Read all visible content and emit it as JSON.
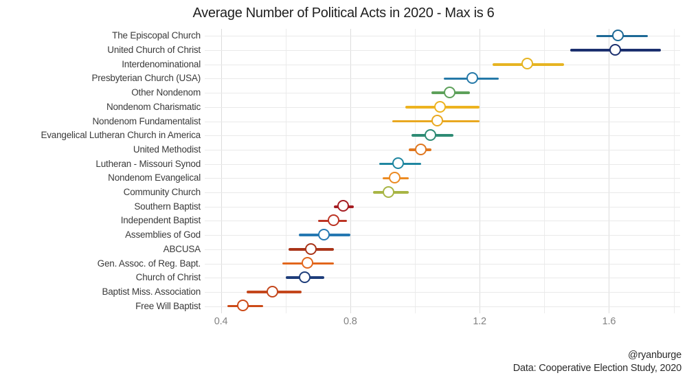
{
  "title": "Average Number of Political Acts in 2020 - Max is 6",
  "caption": {
    "author": "@ryanburge",
    "source": "Data: Cooperative Election Study, 2020"
  },
  "chart_data": {
    "type": "scatter",
    "subtype": "dot-whisker-pointrange",
    "orientation": "horizontal",
    "title": "Average Number of Political Acts in 2020 - Max is 6",
    "xlabel": "",
    "ylabel": "",
    "grid": true,
    "legend": false,
    "x_axis": {
      "min": 0.35,
      "max": 1.82,
      "tick_values": [
        0.4,
        0.8,
        1.2,
        1.6
      ],
      "tick_labels": [
        "0.4",
        "0.8",
        "1.2",
        "1.6"
      ],
      "gridline_start": 0.4,
      "gridline_step": 0.2,
      "gridline_end": 1.8
    },
    "points": [
      {
        "label": "The Episcopal Church",
        "value": 1.63,
        "ci_low": 1.56,
        "ci_high": 1.72,
        "color": "#1d6996"
      },
      {
        "label": "United Church of Christ",
        "value": 1.62,
        "ci_low": 1.48,
        "ci_high": 1.76,
        "color": "#1b2f6e"
      },
      {
        "label": "Interdenominational",
        "value": 1.35,
        "ci_low": 1.24,
        "ci_high": 1.46,
        "color": "#e6b422"
      },
      {
        "label": "Presbyterian Church (USA)",
        "value": 1.18,
        "ci_low": 1.09,
        "ci_high": 1.26,
        "color": "#2579a8"
      },
      {
        "label": "Other Nondenom",
        "value": 1.11,
        "ci_low": 1.05,
        "ci_high": 1.17,
        "color": "#5da05a"
      },
      {
        "label": "Nondenom Charismatic",
        "value": 1.08,
        "ci_low": 0.97,
        "ci_high": 1.2,
        "color": "#edb320"
      },
      {
        "label": "Nondenom Fundamentalist",
        "value": 1.07,
        "ci_low": 0.93,
        "ci_high": 1.2,
        "color": "#e9a820"
      },
      {
        "label": "Evangelical Lutheran Church in America",
        "value": 1.05,
        "ci_low": 0.99,
        "ci_high": 1.12,
        "color": "#2e8b74"
      },
      {
        "label": "United Methodist",
        "value": 1.02,
        "ci_low": 0.98,
        "ci_high": 1.05,
        "color": "#e0771f"
      },
      {
        "label": "Lutheran - Missouri Synod",
        "value": 0.95,
        "ci_low": 0.89,
        "ci_high": 1.02,
        "color": "#1f86a0"
      },
      {
        "label": "Nondenom Evangelical",
        "value": 0.94,
        "ci_low": 0.9,
        "ci_high": 0.98,
        "color": "#ec8a21"
      },
      {
        "label": "Community Church",
        "value": 0.92,
        "ci_low": 0.87,
        "ci_high": 0.98,
        "color": "#a8b545"
      },
      {
        "label": "Southern Baptist",
        "value": 0.78,
        "ci_low": 0.75,
        "ci_high": 0.81,
        "color": "#a51d23"
      },
      {
        "label": "Independent Baptist",
        "value": 0.75,
        "ci_low": 0.7,
        "ci_high": 0.79,
        "color": "#bc3424"
      },
      {
        "label": "Assemblies of God",
        "value": 0.72,
        "ci_low": 0.64,
        "ci_high": 0.8,
        "color": "#2578b2"
      },
      {
        "label": "ABCUSA",
        "value": 0.68,
        "ci_low": 0.61,
        "ci_high": 0.75,
        "color": "#a93418"
      },
      {
        "label": "Gen. Assoc. of Reg. Bapt.",
        "value": 0.67,
        "ci_low": 0.59,
        "ci_high": 0.75,
        "color": "#e2661c"
      },
      {
        "label": "Church of Christ",
        "value": 0.66,
        "ci_low": 0.6,
        "ci_high": 0.72,
        "color": "#1e3d7a"
      },
      {
        "label": "Baptist Miss. Association",
        "value": 0.56,
        "ci_low": 0.48,
        "ci_high": 0.65,
        "color": "#c4471c"
      },
      {
        "label": "Free Will Baptist",
        "value": 0.47,
        "ci_low": 0.42,
        "ci_high": 0.53,
        "color": "#cc4a18"
      }
    ]
  }
}
